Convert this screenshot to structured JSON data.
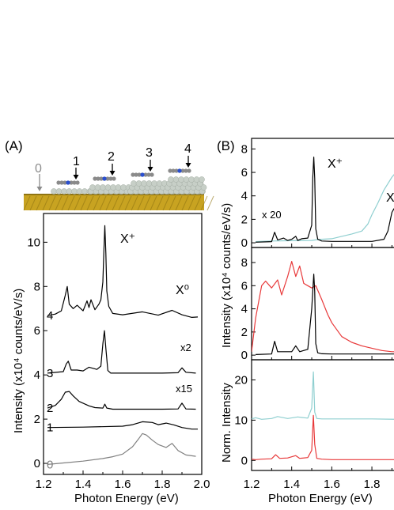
{
  "panel_labels": {
    "a": "(A)",
    "b": "(B)"
  },
  "schematic": {
    "site_labels": [
      "0",
      "1",
      "2",
      "3",
      "4"
    ],
    "colors": {
      "substrate": "#c8a321",
      "substrate_dark": "#8f7412",
      "atoms": "#c7cfc7",
      "molecule": "#8a8a8a",
      "center": "#2a4fd0",
      "arrow_zero": "#8c8c8c"
    }
  },
  "chart_data": [
    {
      "id": "panel-a",
      "type": "line",
      "xlabel": "Photon Energy (eV)",
      "ylabel": "Intensity (x10⁴ counts/eV/s)",
      "xlim": [
        1.2,
        2.0
      ],
      "ylim": [
        -0.5,
        11.3
      ],
      "x_ticks": [
        "1.2",
        "1.4",
        "1.6",
        "1.8",
        "2.0"
      ],
      "y_ticks": [
        "0",
        "2",
        "4",
        "6",
        "8",
        "10"
      ],
      "annotations": {
        "xplus": "X⁺",
        "x0": "X⁰",
        "x2": "x2",
        "x15": "x15"
      },
      "series": [
        {
          "name": "0",
          "color": "#808080",
          "x": [
            1.22,
            1.3,
            1.4,
            1.5,
            1.55,
            1.6,
            1.65,
            1.68,
            1.7,
            1.72,
            1.75,
            1.78,
            1.82,
            1.85,
            1.88,
            1.92,
            1.97
          ],
          "y": [
            -0.05,
            0.02,
            0.1,
            0.22,
            0.3,
            0.42,
            0.75,
            1.1,
            1.35,
            1.28,
            1.05,
            0.85,
            0.72,
            0.9,
            0.58,
            0.38,
            0.32
          ]
        },
        {
          "name": "1",
          "color": "#000000",
          "x": [
            1.22,
            1.4,
            1.6,
            1.65,
            1.7,
            1.75,
            1.78,
            1.82,
            1.86,
            1.9,
            1.95,
            1.98
          ],
          "y": [
            1.62,
            1.64,
            1.68,
            1.75,
            1.88,
            1.85,
            1.75,
            1.82,
            1.74,
            1.62,
            1.55,
            1.55
          ]
        },
        {
          "name": "2",
          "color": "#000000",
          "x": [
            1.22,
            1.26,
            1.29,
            1.31,
            1.33,
            1.35,
            1.38,
            1.4,
            1.43,
            1.46,
            1.5,
            1.51,
            1.52,
            1.55,
            1.6,
            1.8,
            1.88,
            1.9,
            1.92,
            1.97
          ],
          "y": [
            2.5,
            2.62,
            2.9,
            3.22,
            3.25,
            3.05,
            2.8,
            2.72,
            2.6,
            2.52,
            2.5,
            2.68,
            2.5,
            2.45,
            2.45,
            2.45,
            2.46,
            2.72,
            2.46,
            2.45
          ]
        },
        {
          "name": "3",
          "color": "#000000",
          "x": [
            1.22,
            1.3,
            1.315,
            1.325,
            1.34,
            1.37,
            1.4,
            1.43,
            1.47,
            1.49,
            1.5,
            1.508,
            1.515,
            1.525,
            1.54,
            1.6,
            1.7,
            1.8,
            1.88,
            1.9,
            1.92,
            1.97
          ],
          "y": [
            4.08,
            4.15,
            4.5,
            4.62,
            4.22,
            4.22,
            4.18,
            4.35,
            4.25,
            4.4,
            5.4,
            6.0,
            5.2,
            4.2,
            4.08,
            4.08,
            4.08,
            4.08,
            4.1,
            4.32,
            4.12,
            4.08
          ]
        },
        {
          "name": "4",
          "color": "#000000",
          "x": [
            1.22,
            1.26,
            1.29,
            1.31,
            1.32,
            1.33,
            1.35,
            1.37,
            1.4,
            1.42,
            1.43,
            1.44,
            1.46,
            1.48,
            1.49,
            1.5,
            1.505,
            1.51,
            1.515,
            1.52,
            1.53,
            1.55,
            1.6,
            1.7,
            1.78,
            1.85,
            1.9,
            1.95,
            1.98
          ],
          "y": [
            6.68,
            6.75,
            6.9,
            7.6,
            8.0,
            7.2,
            7.0,
            7.15,
            6.9,
            7.35,
            7.05,
            7.4,
            6.95,
            7.2,
            7.4,
            8.2,
            9.6,
            10.75,
            9.5,
            7.8,
            7.1,
            6.78,
            6.72,
            6.85,
            6.7,
            6.92,
            6.72,
            6.6,
            6.62
          ]
        }
      ],
      "curve_labels": [
        "0",
        "1",
        "2",
        "3",
        "4"
      ]
    },
    {
      "id": "panel-b-top",
      "type": "line",
      "ylabel": "Intensity (x10⁴ counts/eV/s)",
      "xlim": [
        1.2,
        1.93
      ],
      "ylim": [
        -0.4,
        8.9
      ],
      "y_ticks": [
        "0",
        "2",
        "4",
        "6",
        "8"
      ],
      "annotations": {
        "xplus": "X⁺",
        "x20": "x 20",
        "x0_partial": "X"
      },
      "series": [
        {
          "name": "cyan",
          "color": "#8fcfd0",
          "x": [
            1.22,
            1.3,
            1.4,
            1.5,
            1.52,
            1.55,
            1.6,
            1.65,
            1.7,
            1.75,
            1.78,
            1.8,
            1.83,
            1.86,
            1.9,
            1.93
          ],
          "y": [
            0.1,
            0.15,
            0.18,
            0.2,
            0.25,
            0.3,
            0.35,
            0.55,
            0.75,
            1.0,
            1.6,
            2.4,
            3.4,
            4.5,
            5.6,
            6.2
          ]
        },
        {
          "name": "black",
          "color": "#000000",
          "x": [
            1.22,
            1.3,
            1.315,
            1.33,
            1.36,
            1.38,
            1.4,
            1.42,
            1.43,
            1.45,
            1.48,
            1.5,
            1.505,
            1.51,
            1.515,
            1.52,
            1.53,
            1.55,
            1.6,
            1.7,
            1.8,
            1.86,
            1.88,
            1.9,
            1.91,
            1.93
          ],
          "y": [
            0.05,
            0.1,
            0.9,
            0.25,
            0.4,
            0.2,
            0.3,
            0.55,
            0.2,
            0.35,
            0.4,
            1.5,
            5.5,
            7.3,
            5.5,
            1.2,
            0.3,
            0.15,
            0.12,
            0.12,
            0.12,
            0.3,
            1.0,
            2.6,
            2.9,
            1.8
          ]
        }
      ]
    },
    {
      "id": "panel-b-mid",
      "type": "line",
      "xlim": [
        1.2,
        1.93
      ],
      "ylim": [
        -0.4,
        9.3
      ],
      "y_ticks": [
        "0",
        "2",
        "4",
        "6",
        "8"
      ],
      "series": [
        {
          "name": "red",
          "color": "#e8393a",
          "x": [
            1.2,
            1.22,
            1.25,
            1.27,
            1.3,
            1.33,
            1.35,
            1.38,
            1.4,
            1.42,
            1.44,
            1.46,
            1.48,
            1.5,
            1.52,
            1.55,
            1.58,
            1.6,
            1.65,
            1.7,
            1.75,
            1.8,
            1.85,
            1.9,
            1.93
          ],
          "y": [
            0.3,
            3.2,
            6.0,
            6.4,
            5.8,
            6.5,
            5.2,
            6.8,
            8.1,
            6.8,
            7.7,
            6.2,
            6.0,
            5.8,
            6.0,
            4.8,
            3.5,
            2.8,
            1.6,
            1.1,
            0.8,
            0.6,
            0.4,
            0.3,
            0.3
          ]
        },
        {
          "name": "black",
          "color": "#000000",
          "x": [
            1.22,
            1.3,
            1.315,
            1.33,
            1.4,
            1.42,
            1.44,
            1.48,
            1.5,
            1.51,
            1.515,
            1.52,
            1.53,
            1.55,
            1.6,
            1.7,
            1.8,
            1.93
          ],
          "y": [
            0.05,
            0.1,
            1.2,
            0.3,
            0.3,
            0.8,
            0.3,
            0.5,
            4.0,
            7.0,
            5.5,
            1.0,
            0.2,
            0.12,
            0.1,
            0.1,
            0.1,
            0.1
          ]
        }
      ]
    },
    {
      "id": "panel-b-bot",
      "type": "line",
      "xlabel": "Photon Energy (eV)",
      "ylabel": "Norm. Intensity",
      "xlim": [
        1.2,
        1.93
      ],
      "ylim": [
        -2.5,
        25
      ],
      "x_ticks": [
        "1.2",
        "1.4",
        "1.6",
        "1.8"
      ],
      "y_ticks": [
        "0",
        "10",
        "20"
      ],
      "series": [
        {
          "name": "cyan",
          "color": "#8fcfd0",
          "x": [
            1.2,
            1.22,
            1.25,
            1.3,
            1.33,
            1.38,
            1.43,
            1.48,
            1.5,
            1.508,
            1.515,
            1.525,
            1.55,
            1.6,
            1.7,
            1.8,
            1.93
          ],
          "y": [
            10.3,
            10.6,
            10.2,
            10.4,
            10.9,
            10.4,
            10.8,
            10.5,
            13.0,
            22.0,
            12.0,
            10.4,
            10.3,
            10.3,
            10.3,
            10.3,
            10.2
          ]
        },
        {
          "name": "red",
          "color": "#e8393a",
          "x": [
            1.2,
            1.22,
            1.25,
            1.3,
            1.32,
            1.34,
            1.38,
            1.42,
            1.44,
            1.48,
            1.5,
            1.508,
            1.515,
            1.525,
            1.55,
            1.6,
            1.7,
            1.8,
            1.93
          ],
          "y": [
            0.3,
            0.2,
            0.3,
            0.4,
            1.4,
            0.5,
            0.6,
            1.2,
            0.5,
            0.7,
            2.5,
            11.2,
            4.0,
            0.5,
            0.3,
            0.2,
            0.2,
            0.2,
            0.2
          ]
        }
      ]
    }
  ]
}
